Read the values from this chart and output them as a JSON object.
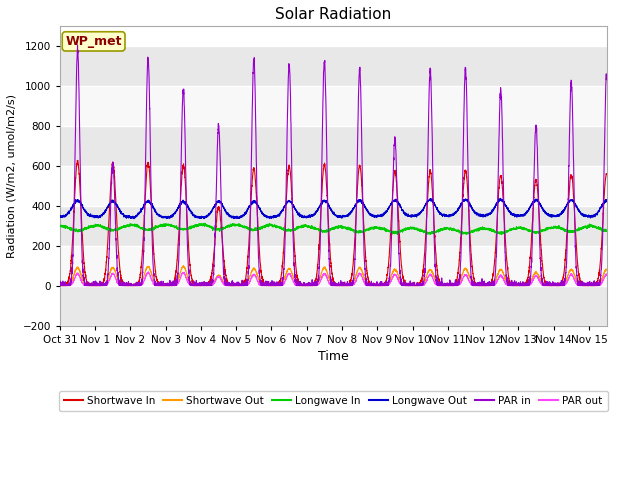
{
  "title": "Solar Radiation",
  "xlabel": "Time",
  "ylabel": "Radiation (W/m2, umol/m2/s)",
  "ylim": [
    -200,
    1300
  ],
  "yticks": [
    -200,
    0,
    200,
    400,
    600,
    800,
    1000,
    1200
  ],
  "xlim_start": 0,
  "xlim_end": 15.5,
  "annotation_text": "WP_met",
  "annotation_box_color": "#ffffcc",
  "annotation_text_color": "#8b0000",
  "annotation_edge_color": "#999900",
  "plot_bg_color": "#ffffff",
  "fig_bg_color": "#ffffff",
  "band_colors": [
    "#e8e8e8",
    "#f8f8f8"
  ],
  "colors": {
    "shortwave_in": "#dd0000",
    "shortwave_out": "#ff9900",
    "longwave_in": "#00cc00",
    "longwave_out": "#0000cc",
    "par_in": "#9900cc",
    "par_out": "#ff44ff"
  },
  "legend_labels": [
    "Shortwave In",
    "Shortwave Out",
    "Longwave In",
    "Longwave Out",
    "PAR in",
    "PAR out"
  ],
  "x_tick_labels": [
    "Oct 31",
    "Nov 1",
    "Nov 2",
    "Nov 3",
    "Nov 4",
    "Nov 5",
    "Nov 6",
    "Nov 7",
    "Nov 8",
    "Nov 9",
    "Nov 10",
    "Nov 11",
    "Nov 12",
    "Nov 13",
    "Nov 14",
    "Nov 15"
  ],
  "par_in_peaks": [
    1180,
    610,
    1140,
    980,
    800,
    1130,
    1110,
    1130,
    1080,
    730,
    1080,
    1090,
    980,
    800,
    1020,
    1050
  ],
  "sw_in_peaks": [
    620,
    610,
    615,
    600,
    390,
    585,
    600,
    605,
    600,
    570,
    570,
    575,
    550,
    530,
    555,
    560
  ],
  "sw_out_peaks": [
    90,
    90,
    95,
    95,
    50,
    85,
    85,
    90,
    90,
    80,
    80,
    85,
    80,
    65,
    80,
    80
  ],
  "par_out_peaks": [
    60,
    60,
    65,
    65,
    45,
    55,
    60,
    60,
    60,
    55,
    55,
    55,
    50,
    50,
    55,
    55
  ],
  "lw_in_base": 300,
  "lw_out_base": 350,
  "lw_in_range": [
    275,
    345
  ],
  "lw_out_range": [
    330,
    445
  ]
}
